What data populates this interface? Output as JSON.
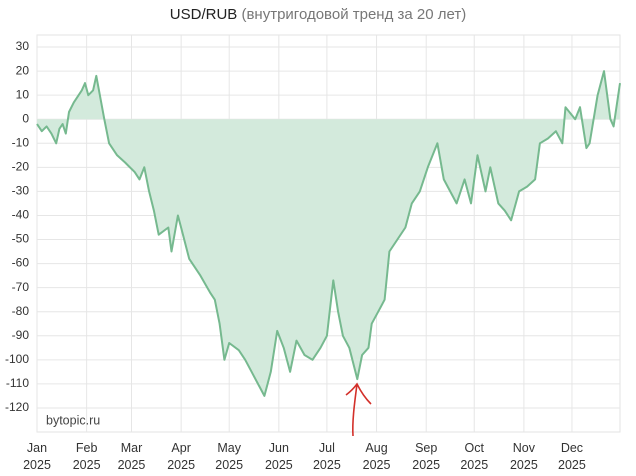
{
  "chart_data": {
    "type": "area",
    "title": "USD/RUB",
    "subtitle": "(внутригодовой тренд за 20 лет)",
    "watermark": "bytopic.ru",
    "x": [
      0,
      3,
      6,
      9,
      12,
      14,
      16,
      18,
      20,
      23,
      26,
      28,
      30,
      32,
      35,
      37,
      42,
      45,
      50,
      55,
      61,
      64,
      67,
      70,
      73,
      76,
      82,
      84,
      88,
      90,
      95,
      102,
      108,
      111,
      114,
      117,
      120,
      126,
      130,
      134,
      138,
      142,
      146,
      150,
      154,
      158,
      162,
      167,
      172,
      177,
      181,
      185,
      188,
      191,
      195,
      200,
      203,
      207,
      209,
      213,
      217,
      220,
      225,
      230,
      234,
      239,
      244,
      250,
      254,
      258,
      262,
      267,
      271,
      275,
      280,
      283,
      288,
      292,
      296,
      301,
      306,
      311,
      314,
      319,
      324,
      328,
      330,
      336,
      339,
      343,
      345,
      350,
      354,
      358,
      360,
      364
    ],
    "values": [
      -2,
      -5,
      -3,
      -6,
      -10,
      -4,
      -2,
      -6,
      3,
      7,
      10,
      12,
      15,
      10,
      12,
      18,
      0,
      -10,
      -15,
      -18,
      -22,
      -25,
      -20,
      -30,
      -38,
      -48,
      -45,
      -55,
      -40,
      -45,
      -58,
      -65,
      -72,
      -75,
      -85,
      -100,
      -93,
      -96,
      -100,
      -105,
      -110,
      -115,
      -105,
      -88,
      -95,
      -105,
      -92,
      -98,
      -100,
      -95,
      -90,
      -67,
      -80,
      -90,
      -95,
      -108,
      -98,
      -95,
      -85,
      -80,
      -75,
      -55,
      -50,
      -45,
      -35,
      -30,
      -20,
      -10,
      -25,
      -30,
      -35,
      -25,
      -35,
      -15,
      -30,
      -20,
      -35,
      -38,
      -42,
      -30,
      -28,
      -25,
      -10,
      -8,
      -5,
      -10,
      5,
      0,
      5,
      -12,
      -10,
      10,
      20,
      0,
      -3,
      15
    ],
    "line_color": "#76b98f",
    "fill_color": "#d3eadc",
    "grid": true,
    "xlim": [
      0,
      364
    ],
    "xticks": [
      {
        "value": 0,
        "label": "Jan 2025"
      },
      {
        "value": 31,
        "label": "Feb 2025"
      },
      {
        "value": 59,
        "label": "Mar 2025"
      },
      {
        "value": 90,
        "label": "Apr 2025"
      },
      {
        "value": 120,
        "label": "May 2025"
      },
      {
        "value": 151,
        "label": "Jun 2025"
      },
      {
        "value": 181,
        "label": "Jul 2025"
      },
      {
        "value": 212,
        "label": "Aug 2025"
      },
      {
        "value": 243,
        "label": "Sep 2025"
      },
      {
        "value": 273,
        "label": "Oct 2025"
      },
      {
        "value": 304,
        "label": "Nov 2025"
      },
      {
        "value": 334,
        "label": "Dec 2025"
      }
    ],
    "ylim": [
      -130,
      35
    ],
    "yticks": [
      30,
      20,
      10,
      0,
      -10,
      -20,
      -30,
      -40,
      -50,
      -60,
      -70,
      -80,
      -90,
      -100,
      -110,
      -120
    ]
  }
}
